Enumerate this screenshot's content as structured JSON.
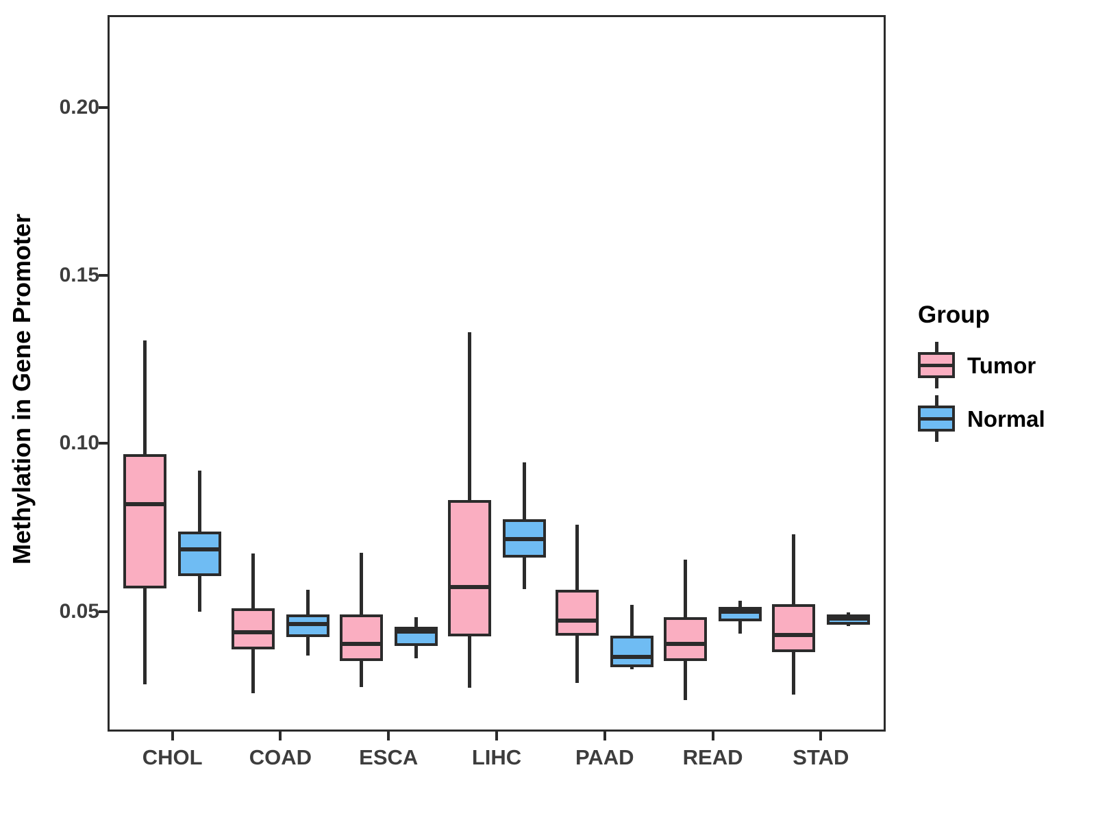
{
  "chart_data": {
    "type": "boxplot",
    "title": "",
    "xlabel": "",
    "ylabel": "Methylation in Gene Promoter",
    "categories": [
      "CHOL",
      "COAD",
      "ESCA",
      "LIHC",
      "PAAD",
      "READ",
      "STAD"
    ],
    "y_ticks": [
      0.05,
      0.1,
      0.15,
      0.2
    ],
    "y_tick_labels": [
      "0.05",
      "0.10",
      "0.15",
      "0.20"
    ],
    "ylim": [
      0.01425,
      0.2275
    ],
    "grid": false,
    "stat_keys": [
      "whisker_low",
      "q1",
      "median",
      "q3",
      "whisker_high"
    ],
    "series": [
      {
        "name": "Tumor",
        "color": "#FAAEC1",
        "stats": [
          [
            0.0284,
            0.0569,
            0.0819,
            0.0968,
            0.1306
          ],
          [
            0.0256,
            0.0388,
            0.0439,
            0.0509,
            0.0673
          ],
          [
            0.0276,
            0.0353,
            0.0404,
            0.0492,
            0.0675
          ],
          [
            0.0272,
            0.0425,
            0.0573,
            0.0832,
            0.1332
          ],
          [
            0.0288,
            0.0427,
            0.0472,
            0.0565,
            0.0758
          ],
          [
            0.0236,
            0.0353,
            0.0404,
            0.0482,
            0.0655
          ],
          [
            0.0252,
            0.0378,
            0.0429,
            0.0522,
            0.073
          ]
        ]
      },
      {
        "name": "Normal",
        "color": "#6FBCF3",
        "stats": [
          [
            0.05,
            0.0606,
            0.0685,
            0.0738,
            0.0919
          ],
          [
            0.0368,
            0.0423,
            0.0462,
            0.0492,
            0.0565
          ],
          [
            0.036,
            0.0398,
            0.0441,
            0.0455,
            0.0482
          ],
          [
            0.0567,
            0.0661,
            0.0716,
            0.0775,
            0.0944
          ],
          [
            0.0328,
            0.0334,
            0.0365,
            0.0428,
            0.052
          ],
          [
            0.0433,
            0.0471,
            0.05,
            0.0514,
            0.0531
          ],
          [
            0.0457,
            0.0461,
            0.0478,
            0.0492,
            0.0498
          ]
        ]
      }
    ],
    "legend": {
      "title": "Group",
      "position": "right",
      "entries": [
        {
          "label": "Tumor",
          "color": "#FAAEC1"
        },
        {
          "label": "Normal",
          "color": "#6FBCF3"
        }
      ]
    }
  },
  "colors": {
    "line": "#2B2B2B",
    "tick_text": "#3D3D3D",
    "title_text": "#000000",
    "background": "#FFFFFF"
  }
}
